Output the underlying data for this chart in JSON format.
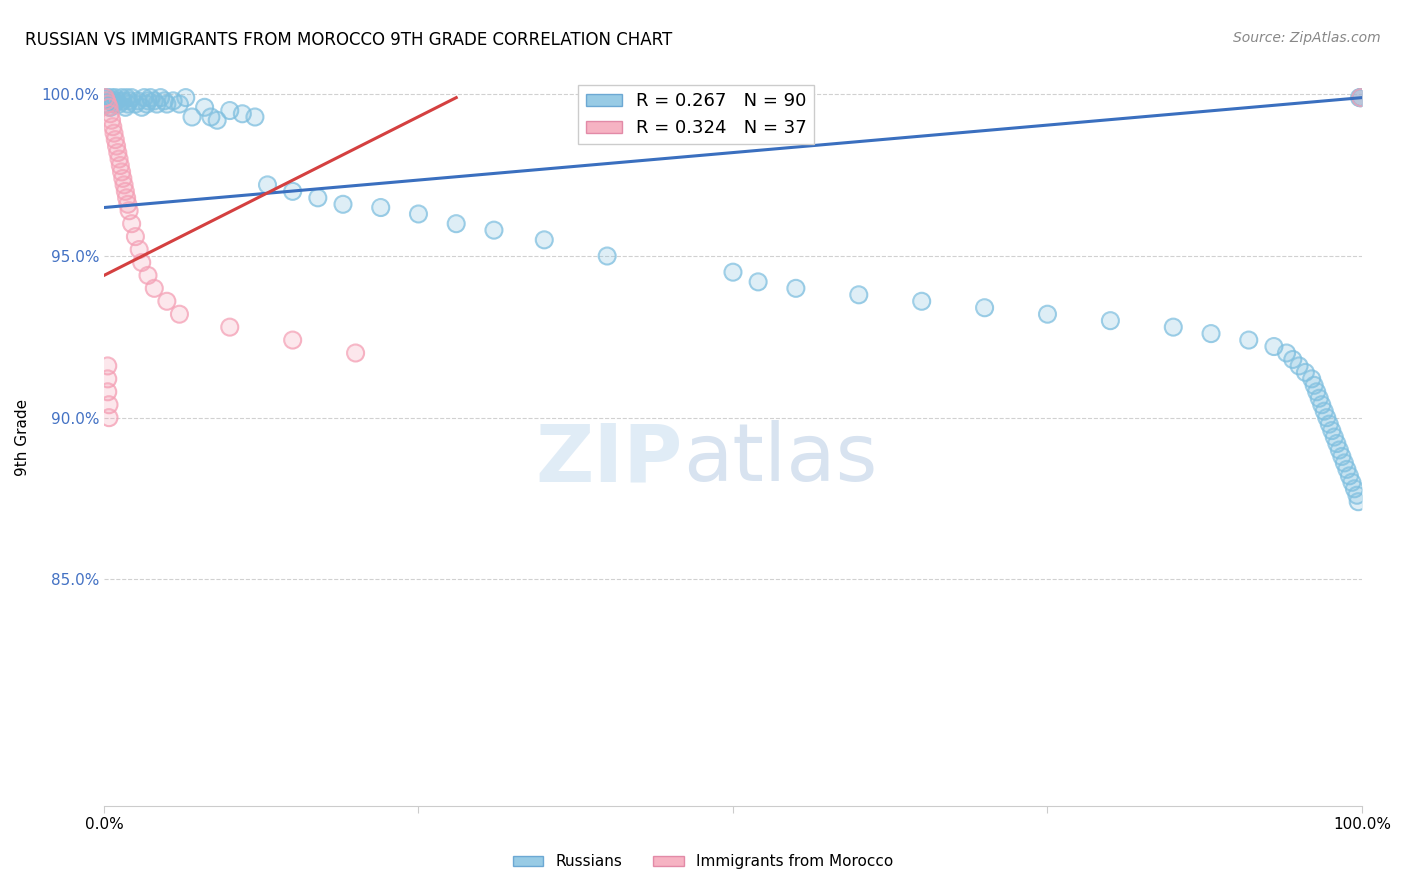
{
  "title": "RUSSIAN VS IMMIGRANTS FROM MOROCCO 9TH GRADE CORRELATION CHART",
  "source": "Source: ZipAtlas.com",
  "ylabel": "9th Grade",
  "blue_color": "#7fbfdf",
  "pink_color": "#f4a0b5",
  "blue_line_color": "#3a6fbf",
  "pink_line_color": "#d44040",
  "legend_R_blue": "R = 0.267",
  "legend_N_blue": "N = 90",
  "legend_R_pink": "R = 0.324",
  "legend_N_pink": "N = 37",
  "watermark_zip": "ZIP",
  "watermark_atlas": "atlas",
  "russians_x": [
    0.001,
    0.002,
    0.003,
    0.004,
    0.005,
    0.006,
    0.007,
    0.008,
    0.009,
    0.01,
    0.012,
    0.014,
    0.015,
    0.017,
    0.018,
    0.019,
    0.02,
    0.022,
    0.025,
    0.027,
    0.03,
    0.032,
    0.034,
    0.035,
    0.037,
    0.04,
    0.042,
    0.045,
    0.048,
    0.05,
    0.055,
    0.06,
    0.065,
    0.07,
    0.08,
    0.085,
    0.09,
    0.1,
    0.11,
    0.12,
    0.13,
    0.15,
    0.17,
    0.19,
    0.22,
    0.25,
    0.28,
    0.31,
    0.35,
    0.4,
    0.5,
    0.52,
    0.55,
    0.6,
    0.65,
    0.7,
    0.75,
    0.8,
    0.85,
    0.88,
    0.91,
    0.93,
    0.94,
    0.945,
    0.95,
    0.955,
    0.96,
    0.962,
    0.964,
    0.966,
    0.968,
    0.97,
    0.972,
    0.974,
    0.976,
    0.978,
    0.98,
    0.982,
    0.984,
    0.986,
    0.988,
    0.99,
    0.992,
    0.994,
    0.996,
    0.997,
    0.998,
    0.999,
    0.999,
    0.999
  ],
  "russians_y": [
    0.999,
    0.997,
    0.999,
    0.998,
    0.996,
    0.999,
    0.998,
    0.997,
    0.999,
    0.998,
    0.997,
    0.999,
    0.998,
    0.996,
    0.999,
    0.997,
    0.998,
    0.999,
    0.997,
    0.998,
    0.996,
    0.999,
    0.997,
    0.998,
    0.999,
    0.998,
    0.997,
    0.999,
    0.998,
    0.997,
    0.998,
    0.997,
    0.999,
    0.993,
    0.996,
    0.993,
    0.992,
    0.995,
    0.994,
    0.993,
    0.972,
    0.97,
    0.968,
    0.966,
    0.965,
    0.963,
    0.96,
    0.958,
    0.955,
    0.95,
    0.945,
    0.942,
    0.94,
    0.938,
    0.936,
    0.934,
    0.932,
    0.93,
    0.928,
    0.926,
    0.924,
    0.922,
    0.92,
    0.918,
    0.916,
    0.914,
    0.912,
    0.91,
    0.908,
    0.906,
    0.904,
    0.902,
    0.9,
    0.898,
    0.896,
    0.894,
    0.892,
    0.89,
    0.888,
    0.886,
    0.884,
    0.882,
    0.88,
    0.878,
    0.876,
    0.874,
    0.999,
    0.999,
    0.999,
    0.999
  ],
  "morocco_x": [
    0.001,
    0.002,
    0.003,
    0.004,
    0.005,
    0.006,
    0.007,
    0.008,
    0.009,
    0.01,
    0.011,
    0.012,
    0.013,
    0.014,
    0.015,
    0.016,
    0.017,
    0.018,
    0.019,
    0.02,
    0.022,
    0.025,
    0.028,
    0.03,
    0.035,
    0.04,
    0.05,
    0.06,
    0.1,
    0.15,
    0.2,
    0.003,
    0.003,
    0.003,
    0.004,
    0.004,
    0.999
  ],
  "morocco_y": [
    0.999,
    0.998,
    0.997,
    0.996,
    0.994,
    0.992,
    0.99,
    0.988,
    0.986,
    0.984,
    0.982,
    0.98,
    0.978,
    0.976,
    0.974,
    0.972,
    0.97,
    0.968,
    0.966,
    0.964,
    0.96,
    0.956,
    0.952,
    0.948,
    0.944,
    0.94,
    0.936,
    0.932,
    0.928,
    0.924,
    0.92,
    0.916,
    0.912,
    0.908,
    0.904,
    0.9,
    0.999
  ],
  "blue_line_x": [
    0.0,
    1.0
  ],
  "blue_line_y": [
    0.965,
    0.999
  ],
  "pink_line_x": [
    0.0,
    0.28
  ],
  "pink_line_y": [
    0.944,
    0.999
  ],
  "xlim": [
    0.0,
    1.0
  ],
  "ylim": [
    0.78,
    1.008
  ],
  "yticks": [
    0.85,
    0.9,
    0.95,
    1.0
  ],
  "ytick_labels": [
    "85.0%",
    "90.0%",
    "95.0%",
    "100.0%"
  ]
}
